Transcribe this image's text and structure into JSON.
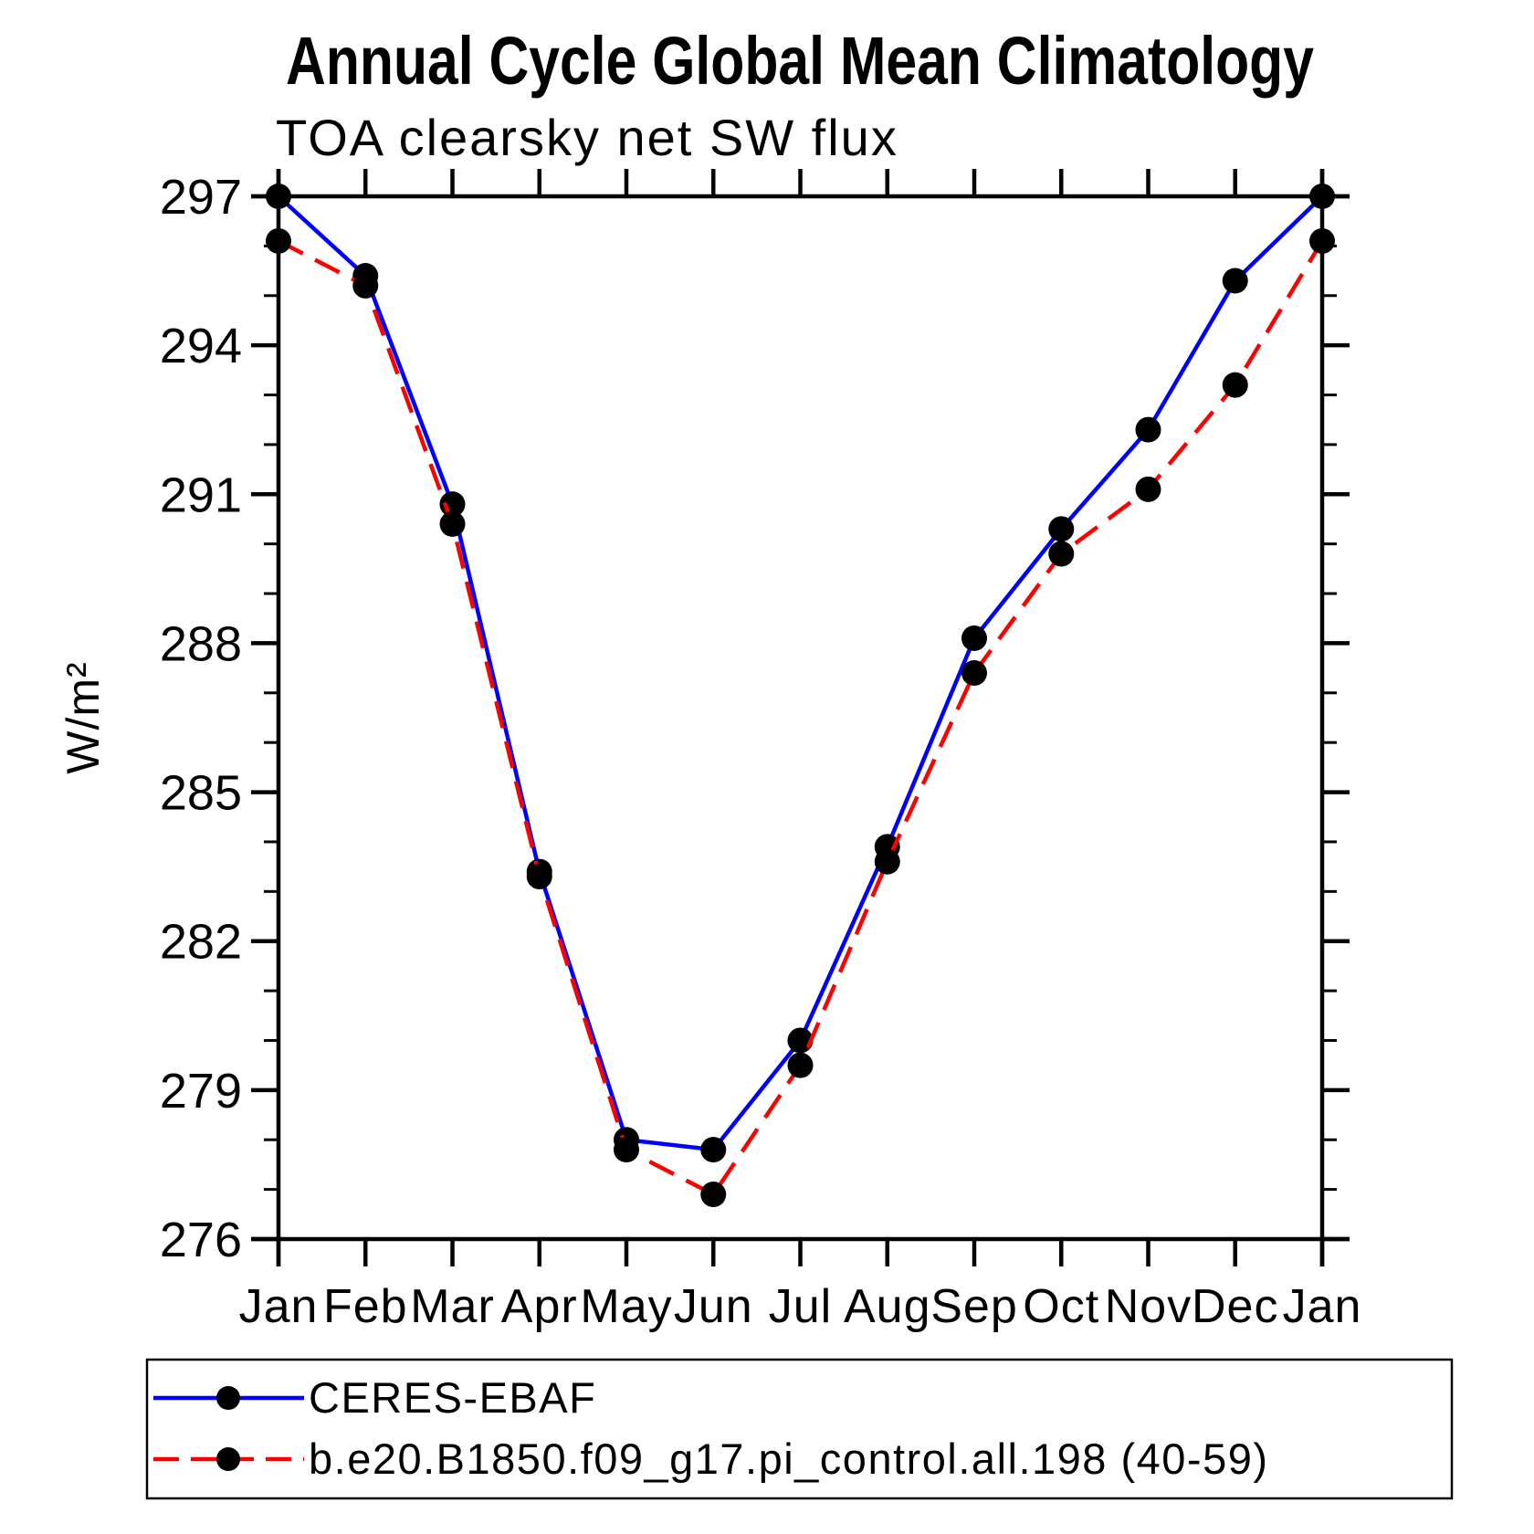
{
  "chart_data": {
    "type": "line",
    "title": "Annual Cycle Global Mean Climatology",
    "subtitle": "TOA clearsky net SW flux",
    "ylabel": "W/m²",
    "xlabel": "",
    "ylim": [
      276,
      297
    ],
    "ytick_major_interval": 3,
    "ytick_minor_interval": 1,
    "yticks_major": [
      276,
      279,
      282,
      285,
      288,
      291,
      294,
      297
    ],
    "categories": [
      "Jan",
      "Feb",
      "Mar",
      "Apr",
      "May",
      "Jun",
      "Jul",
      "Aug",
      "Sep",
      "Oct",
      "Nov",
      "Dec",
      "Jan"
    ],
    "grid": false,
    "legend_position": "bottom-left-box",
    "marker": "filled-circle",
    "marker_color": "#000000",
    "axis_color": "#000000",
    "series": [
      {
        "name": "CERES-EBAF",
        "color": "#0000ff",
        "style": "solid",
        "values": [
          297.0,
          295.4,
          290.8,
          283.4,
          278.0,
          277.8,
          280.0,
          283.9,
          288.1,
          290.3,
          292.3,
          295.3,
          297.0
        ]
      },
      {
        "name": "b.e20.B1850.f09_g17.pi_control.all.198 (40-59)",
        "color": "#ff0000",
        "style": "dashed",
        "values": [
          296.1,
          295.2,
          290.4,
          283.3,
          277.8,
          276.9,
          279.5,
          283.6,
          287.4,
          289.8,
          291.1,
          293.2,
          296.1
        ]
      }
    ]
  }
}
